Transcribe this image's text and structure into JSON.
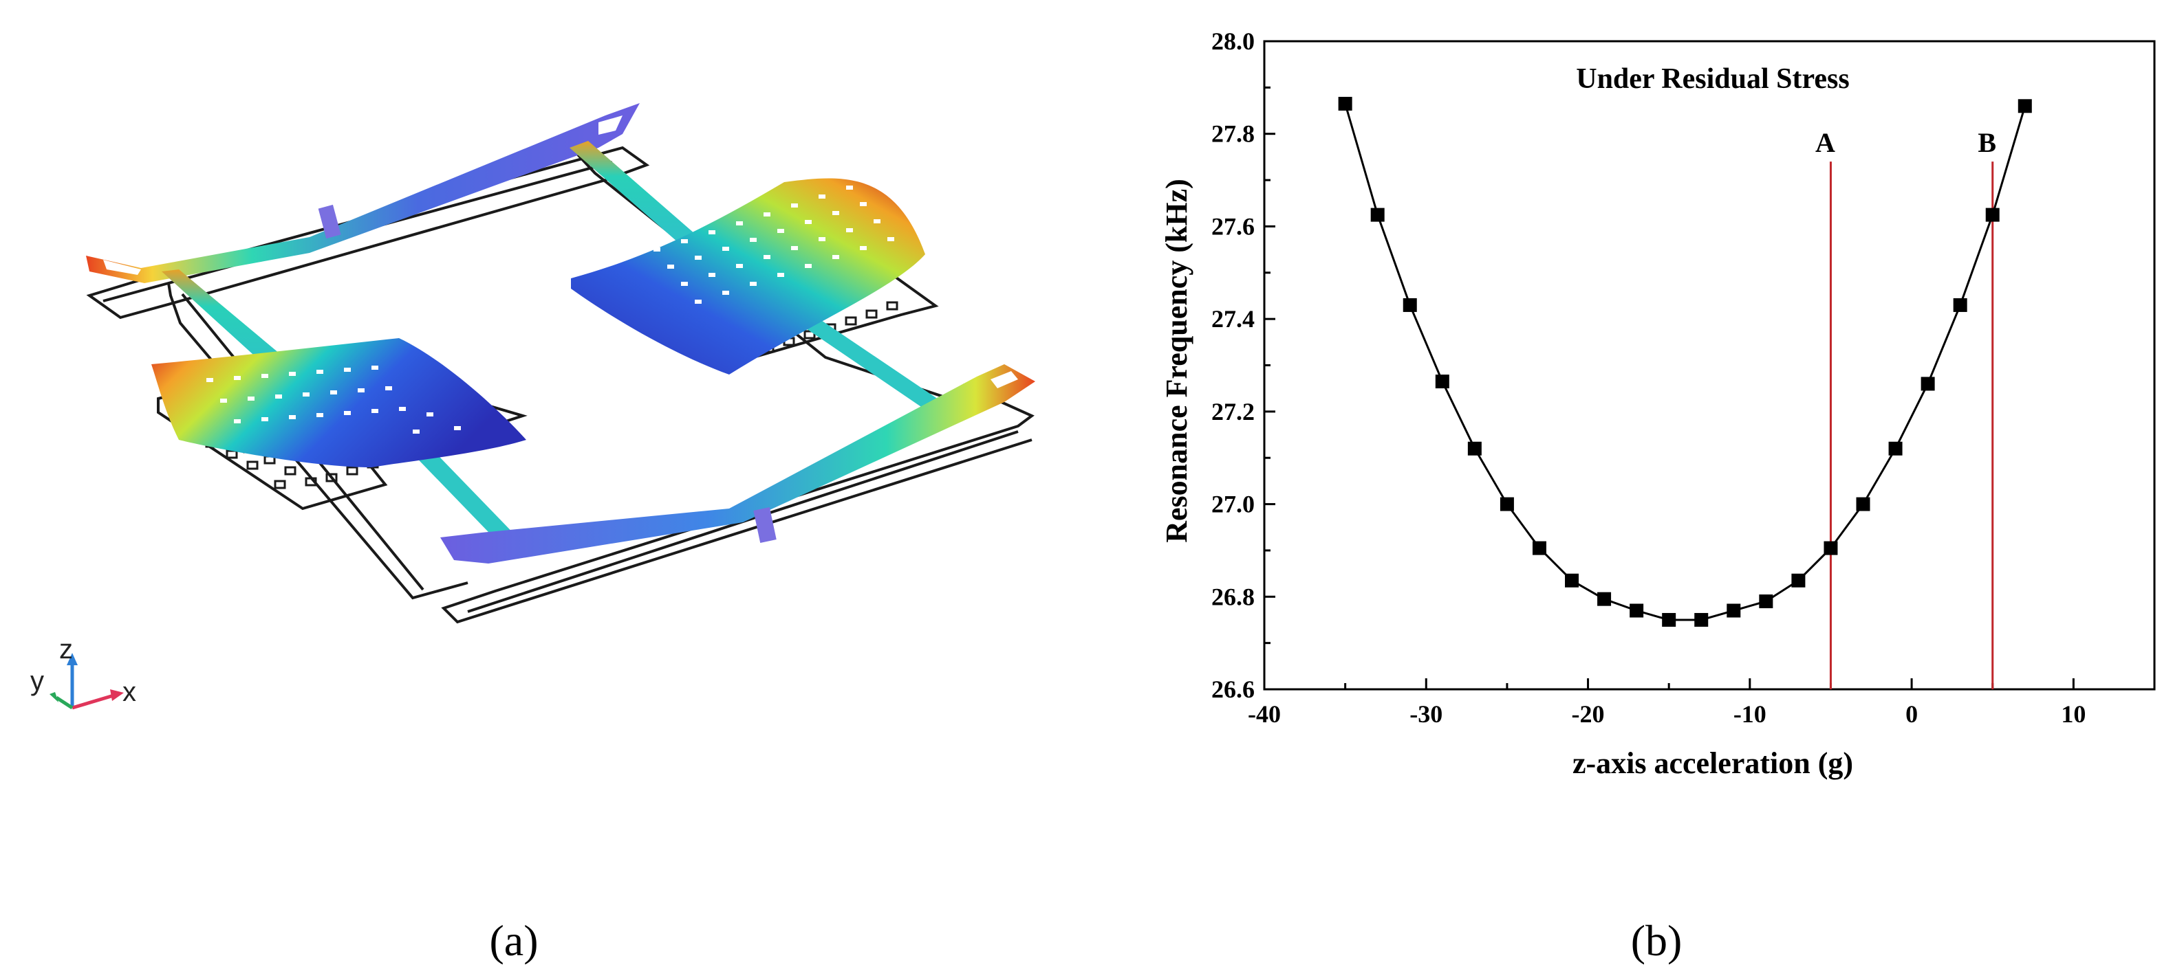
{
  "panel_a": {
    "caption": "(a)",
    "triad": {
      "z": "z",
      "y": "y",
      "x": "x"
    }
  },
  "panel_b": {
    "caption": "(b)"
  },
  "colors": {
    "series": "#000000",
    "marker_lines": "#c0262b",
    "axis": "#000000"
  },
  "chart_data": {
    "type": "scatter",
    "title": "Under Residual Stress",
    "xlabel": "z-axis acceleration (g)",
    "ylabel": "Resonance Frequency (kHz)",
    "xlim": [
      -40,
      15
    ],
    "ylim": [
      26.6,
      28.0
    ],
    "xticks": [
      -40,
      -30,
      -20,
      -10,
      0,
      10
    ],
    "yticks": [
      26.6,
      26.8,
      27.0,
      27.2,
      27.4,
      27.6,
      27.8,
      28.0
    ],
    "grid": false,
    "marker": "square",
    "connected": true,
    "series": [
      {
        "x": [
          -35,
          -33,
          -31,
          -29,
          -27,
          -25,
          -23,
          -21,
          -19,
          -17,
          -15,
          -13,
          -11,
          -9,
          -7,
          -5,
          -3,
          -1,
          1,
          3,
          5,
          7
        ],
        "y": [
          27.865,
          27.625,
          27.43,
          27.265,
          27.12,
          27.0,
          26.905,
          26.835,
          26.795,
          26.77,
          26.75,
          26.75,
          26.77,
          26.79,
          26.835,
          26.905,
          27.0,
          27.12,
          27.26,
          27.43,
          27.625,
          27.86
        ]
      }
    ],
    "markers": [
      {
        "label": "A",
        "x": -5
      },
      {
        "label": "B",
        "x": 5
      }
    ]
  }
}
